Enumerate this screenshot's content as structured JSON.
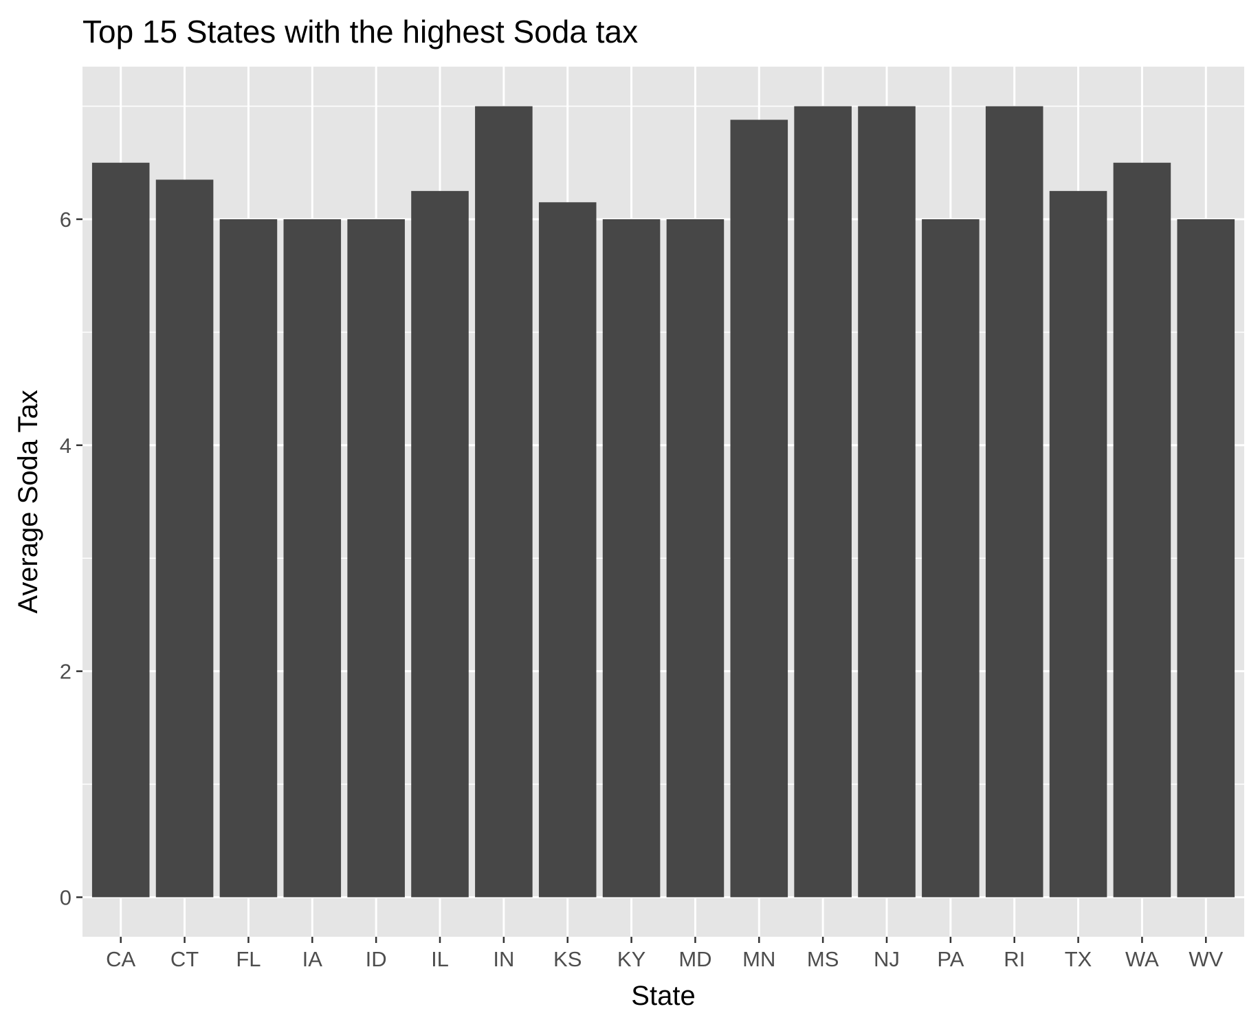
{
  "chart_data": {
    "type": "bar",
    "title": "Top 15 States with the highest Soda tax",
    "xlabel": "State",
    "ylabel": "Average Soda Tax",
    "categories": [
      "CA",
      "CT",
      "FL",
      "IA",
      "ID",
      "IL",
      "IN",
      "KS",
      "KY",
      "MD",
      "MN",
      "MS",
      "NJ",
      "PA",
      "RI",
      "TX",
      "WA",
      "WV"
    ],
    "values": [
      6.5,
      6.35,
      6.0,
      6.0,
      6.0,
      6.25,
      7.0,
      6.15,
      6.0,
      6.0,
      6.88,
      7.0,
      7.0,
      6.0,
      7.0,
      6.25,
      6.5,
      6.0
    ],
    "ylim": [
      -0.35,
      7.35
    ],
    "yticks": [
      0,
      2,
      4,
      6
    ],
    "ytick_labels": [
      "0",
      "2",
      "4",
      "6"
    ],
    "grid": true,
    "legend": "none",
    "colors": {
      "bar": "#474747",
      "panel": "#e5e5e5",
      "grid": "#ffffff",
      "tick_text": "#4d4d4d",
      "tick_mark": "#333333"
    }
  }
}
